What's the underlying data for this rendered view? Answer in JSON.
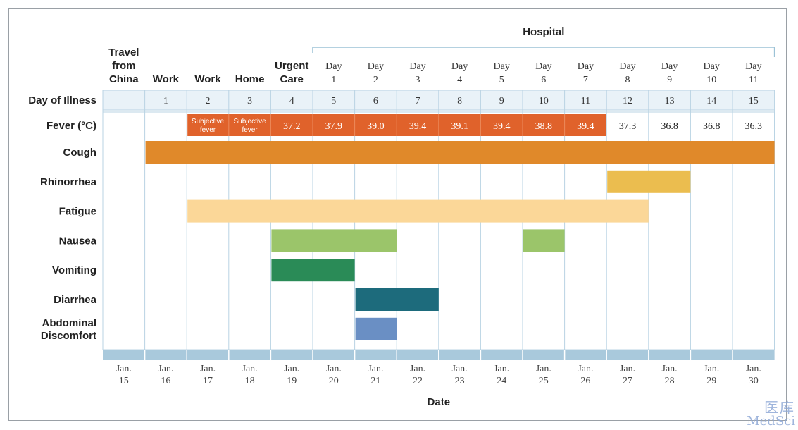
{
  "chart_data": {
    "type": "table",
    "title": "",
    "section_label": "Hospital",
    "columns": [
      {
        "label": [
          "Travel",
          "from",
          "China"
        ],
        "bold": true
      },
      {
        "label": [
          "Work"
        ],
        "bold": true
      },
      {
        "label": [
          "Work"
        ],
        "bold": true
      },
      {
        "label": [
          "Home"
        ],
        "bold": true
      },
      {
        "label": [
          "Urgent",
          "Care"
        ],
        "bold": true
      },
      {
        "label": [
          "Day",
          "1"
        ],
        "bold": false
      },
      {
        "label": [
          "Day",
          "2"
        ],
        "bold": false
      },
      {
        "label": [
          "Day",
          "3"
        ],
        "bold": false
      },
      {
        "label": [
          "Day",
          "4"
        ],
        "bold": false
      },
      {
        "label": [
          "Day",
          "5"
        ],
        "bold": false
      },
      {
        "label": [
          "Day",
          "6"
        ],
        "bold": false
      },
      {
        "label": [
          "Day",
          "7"
        ],
        "bold": false
      },
      {
        "label": [
          "Day",
          "8"
        ],
        "bold": false
      },
      {
        "label": [
          "Day",
          "9"
        ],
        "bold": false
      },
      {
        "label": [
          "Day",
          "10"
        ],
        "bold": false
      },
      {
        "label": [
          "Day",
          "11"
        ],
        "bold": false
      }
    ],
    "hospital_span": [
      5,
      15
    ],
    "day_of_illness_label": "Day of Illness",
    "day_of_illness": [
      "",
      "1",
      "2",
      "3",
      "4",
      "5",
      "6",
      "7",
      "8",
      "9",
      "10",
      "11",
      "12",
      "13",
      "14",
      "15"
    ],
    "fever": {
      "label": "Fever (°C)",
      "values": [
        "",
        "",
        [
          "Subjective",
          "fever"
        ],
        [
          "Subjective",
          "fever"
        ],
        "37.2",
        "37.9",
        "39.0",
        "39.4",
        "39.1",
        "39.4",
        "38.8",
        "39.4",
        "37.3",
        "36.8",
        "36.8",
        "36.3"
      ],
      "highlighted_range": [
        2,
        11
      ],
      "color": "#e0622b"
    },
    "symptoms": [
      {
        "name": "Cough",
        "start": 1,
        "end": 16,
        "color": "#e0892a"
      },
      {
        "name": "Rhinorrhea",
        "start": 12,
        "end": 14,
        "color": "#ebbd4f"
      },
      {
        "name": "Fatigue",
        "start": 2,
        "end": 13,
        "color": "#fbd798"
      },
      {
        "name": "Nausea",
        "segments": [
          [
            4,
            7
          ],
          [
            10,
            11
          ]
        ],
        "color": "#9bc56a"
      },
      {
        "name": "Vomiting",
        "start": 4,
        "end": 6,
        "color": "#2a8b57"
      },
      {
        "name": "Diarrhea",
        "start": 6,
        "end": 8,
        "color": "#1d6b7c"
      },
      {
        "name": "Abdominal Discomfort",
        "lines": [
          "Abdominal",
          "Discomfort"
        ],
        "start": 6,
        "end": 7,
        "color": "#6a8fc4"
      }
    ],
    "dates": [
      [
        "Jan.",
        "15"
      ],
      [
        "Jan.",
        "16"
      ],
      [
        "Jan.",
        "17"
      ],
      [
        "Jan.",
        "18"
      ],
      [
        "Jan.",
        "19"
      ],
      [
        "Jan.",
        "20"
      ],
      [
        "Jan.",
        "21"
      ],
      [
        "Jan.",
        "22"
      ],
      [
        "Jan.",
        "23"
      ],
      [
        "Jan.",
        "24"
      ],
      [
        "Jan.",
        "25"
      ],
      [
        "Jan.",
        "26"
      ],
      [
        "Jan.",
        "27"
      ],
      [
        "Jan.",
        "28"
      ],
      [
        "Jan.",
        "29"
      ],
      [
        "Jan.",
        "30"
      ]
    ],
    "xlabel": "Date"
  },
  "colors": {
    "grid_line": "#b9d3e3",
    "illness_row_bg": "#e9f2f8",
    "bottom_band": "#a9c9dc",
    "hospital_bracket": "#9cc2d6"
  },
  "watermark": {
    "top": "医库",
    "bottom": "MedSci"
  }
}
